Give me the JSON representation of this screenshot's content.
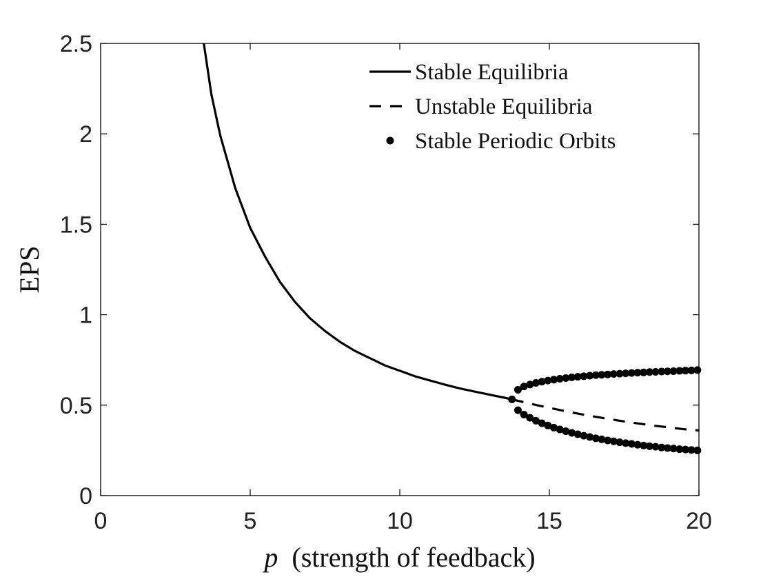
{
  "chart_data": {
    "type": "line",
    "xlabel_var": "p",
    "xlabel_rest": "(strength of feedback)",
    "ylabel": "EPS",
    "xlim": [
      0,
      20
    ],
    "ylim": [
      0,
      2.5
    ],
    "xticks": [
      "0",
      "5",
      "10",
      "15",
      "20"
    ],
    "yticks": [
      "0",
      "0.5",
      "1",
      "1.5",
      "2",
      "2.5"
    ],
    "grid": false,
    "legend_position": "top-right",
    "series": [
      {
        "name": "Stable Equilibria",
        "style": "solid",
        "x": [
          3.45,
          3.7,
          4.0,
          4.5,
          5.0,
          5.5,
          6.0,
          6.5,
          7.0,
          7.5,
          8.0,
          8.5,
          9.0,
          9.5,
          10.0,
          10.5,
          11.0,
          11.5,
          12.0,
          12.5,
          13.0,
          13.5,
          13.75
        ],
        "y": [
          2.5,
          2.22,
          1.99,
          1.7,
          1.48,
          1.32,
          1.18,
          1.07,
          0.98,
          0.91,
          0.85,
          0.8,
          0.76,
          0.72,
          0.69,
          0.66,
          0.637,
          0.614,
          0.593,
          0.575,
          0.558,
          0.541,
          0.532
        ]
      },
      {
        "name": "Unstable Equilibria",
        "style": "dashed",
        "x": [
          13.75,
          14.5,
          15.0,
          15.5,
          16.0,
          16.5,
          17.0,
          17.5,
          18.0,
          18.5,
          19.0,
          19.5,
          20.0
        ],
        "y": [
          0.532,
          0.503,
          0.485,
          0.468,
          0.452,
          0.437,
          0.423,
          0.41,
          0.398,
          0.387,
          0.377,
          0.367,
          0.36
        ]
      },
      {
        "name": "Stable Periodic Orbits",
        "style": "markers",
        "x": [
          13.75,
          13.95,
          14.15,
          14.35,
          14.55,
          14.75,
          14.95,
          15.15,
          15.35,
          15.55,
          15.75,
          15.95,
          16.15,
          16.35,
          16.55,
          16.75,
          16.95,
          17.15,
          17.35,
          17.55,
          17.75,
          17.95,
          18.15,
          18.35,
          18.55,
          18.75,
          18.95,
          19.15,
          19.35,
          19.55,
          19.75,
          19.95,
          13.95,
          14.15,
          14.35,
          14.55,
          14.75,
          14.95,
          15.15,
          15.35,
          15.55,
          15.75,
          15.95,
          16.15,
          16.35,
          16.55,
          16.75,
          16.95,
          17.15,
          17.35,
          17.55,
          17.75,
          17.95,
          18.15,
          18.35,
          18.55,
          18.75,
          18.95,
          19.15,
          19.35,
          19.55,
          19.75,
          19.95
        ],
        "y": [
          0.532,
          0.585,
          0.603,
          0.614,
          0.623,
          0.63,
          0.636,
          0.641,
          0.646,
          0.65,
          0.654,
          0.657,
          0.66,
          0.663,
          0.666,
          0.668,
          0.67,
          0.672,
          0.674,
          0.676,
          0.678,
          0.68,
          0.681,
          0.683,
          0.684,
          0.686,
          0.687,
          0.688,
          0.69,
          0.691,
          0.692,
          0.694,
          0.472,
          0.448,
          0.43,
          0.414,
          0.4,
          0.388,
          0.376,
          0.366,
          0.356,
          0.347,
          0.339,
          0.331,
          0.324,
          0.317,
          0.311,
          0.305,
          0.3,
          0.295,
          0.29,
          0.286,
          0.281,
          0.277,
          0.273,
          0.27,
          0.266,
          0.263,
          0.26,
          0.257,
          0.255,
          0.252,
          0.25
        ]
      }
    ]
  }
}
